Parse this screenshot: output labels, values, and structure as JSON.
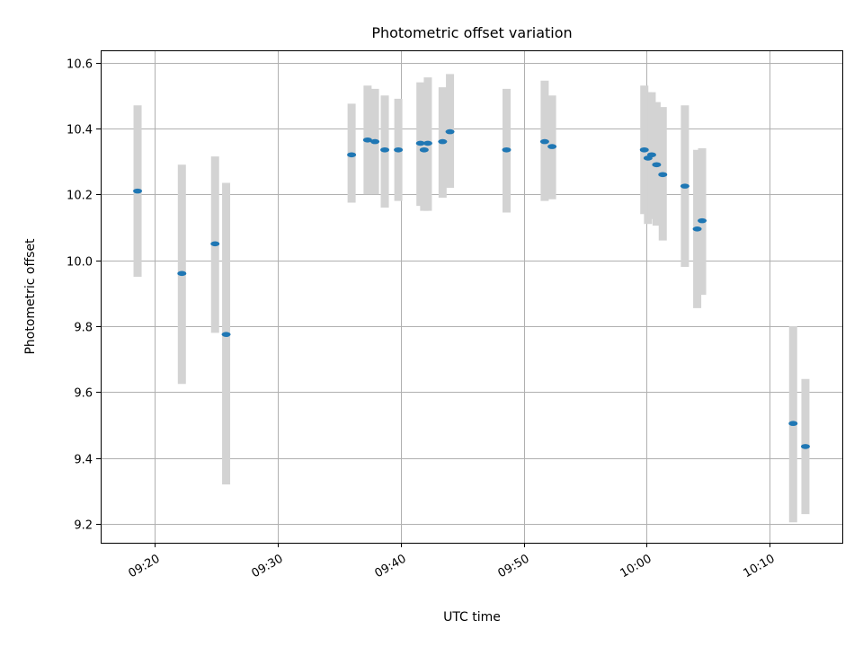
{
  "chart_data": {
    "type": "scatter",
    "title": "Photometric offset variation",
    "xlabel": "UTC time",
    "ylabel": "Photometric offset",
    "x_axis_type": "time",
    "xlim": [
      "09:15:36",
      "10:15:54"
    ],
    "ylim": [
      9.143,
      10.637
    ],
    "x_ticks": [
      "09:20",
      "09:30",
      "09:40",
      "09:50",
      "10:00",
      "10:10"
    ],
    "y_ticks": [
      9.2,
      9.4,
      9.6,
      9.8,
      10.0,
      10.2,
      10.4,
      10.6
    ],
    "grid": true,
    "colors": {
      "points": "#1f77b4",
      "error_bars": "#d3d3d3"
    },
    "points": [
      {
        "t": "09:18:36",
        "y": 10.21,
        "low": 9.95,
        "high": 10.47
      },
      {
        "t": "09:22:12",
        "y": 9.96,
        "low": 9.625,
        "high": 10.29
      },
      {
        "t": "09:24:54",
        "y": 10.05,
        "low": 9.78,
        "high": 10.315
      },
      {
        "t": "09:25:48",
        "y": 9.775,
        "low": 9.32,
        "high": 10.235
      },
      {
        "t": "09:36:00",
        "y": 10.32,
        "low": 10.175,
        "high": 10.475
      },
      {
        "t": "09:37:18",
        "y": 10.365,
        "low": 10.2,
        "high": 10.53
      },
      {
        "t": "09:37:54",
        "y": 10.36,
        "low": 10.2,
        "high": 10.52
      },
      {
        "t": "09:38:42",
        "y": 10.335,
        "low": 10.16,
        "high": 10.5
      },
      {
        "t": "09:39:48",
        "y": 10.335,
        "low": 10.18,
        "high": 10.49
      },
      {
        "t": "09:41:36",
        "y": 10.355,
        "low": 10.165,
        "high": 10.54
      },
      {
        "t": "09:41:54",
        "y": 10.335,
        "low": 10.15,
        "high": 10.535
      },
      {
        "t": "09:42:12",
        "y": 10.355,
        "low": 10.15,
        "high": 10.555
      },
      {
        "t": "09:43:24",
        "y": 10.36,
        "low": 10.19,
        "high": 10.525
      },
      {
        "t": "09:44:00",
        "y": 10.39,
        "low": 10.22,
        "high": 10.565
      },
      {
        "t": "09:48:36",
        "y": 10.335,
        "low": 10.145,
        "high": 10.52
      },
      {
        "t": "09:51:42",
        "y": 10.36,
        "low": 10.18,
        "high": 10.545
      },
      {
        "t": "09:52:18",
        "y": 10.345,
        "low": 10.185,
        "high": 10.5
      },
      {
        "t": "09:59:48",
        "y": 10.335,
        "low": 10.14,
        "high": 10.53
      },
      {
        "t": "10:00:06",
        "y": 10.31,
        "low": 10.11,
        "high": 10.51
      },
      {
        "t": "10:00:24",
        "y": 10.32,
        "low": 10.125,
        "high": 10.51
      },
      {
        "t": "10:00:48",
        "y": 10.29,
        "low": 10.105,
        "high": 10.48
      },
      {
        "t": "10:01:18",
        "y": 10.26,
        "low": 10.06,
        "high": 10.465
      },
      {
        "t": "10:03:06",
        "y": 10.225,
        "low": 9.98,
        "high": 10.47
      },
      {
        "t": "10:04:06",
        "y": 10.095,
        "low": 9.855,
        "high": 10.335
      },
      {
        "t": "10:04:30",
        "y": 10.12,
        "low": 9.895,
        "high": 10.34
      },
      {
        "t": "10:11:54",
        "y": 9.505,
        "low": 9.205,
        "high": 9.8
      },
      {
        "t": "10:12:54",
        "y": 9.435,
        "low": 9.23,
        "high": 9.64
      }
    ]
  }
}
